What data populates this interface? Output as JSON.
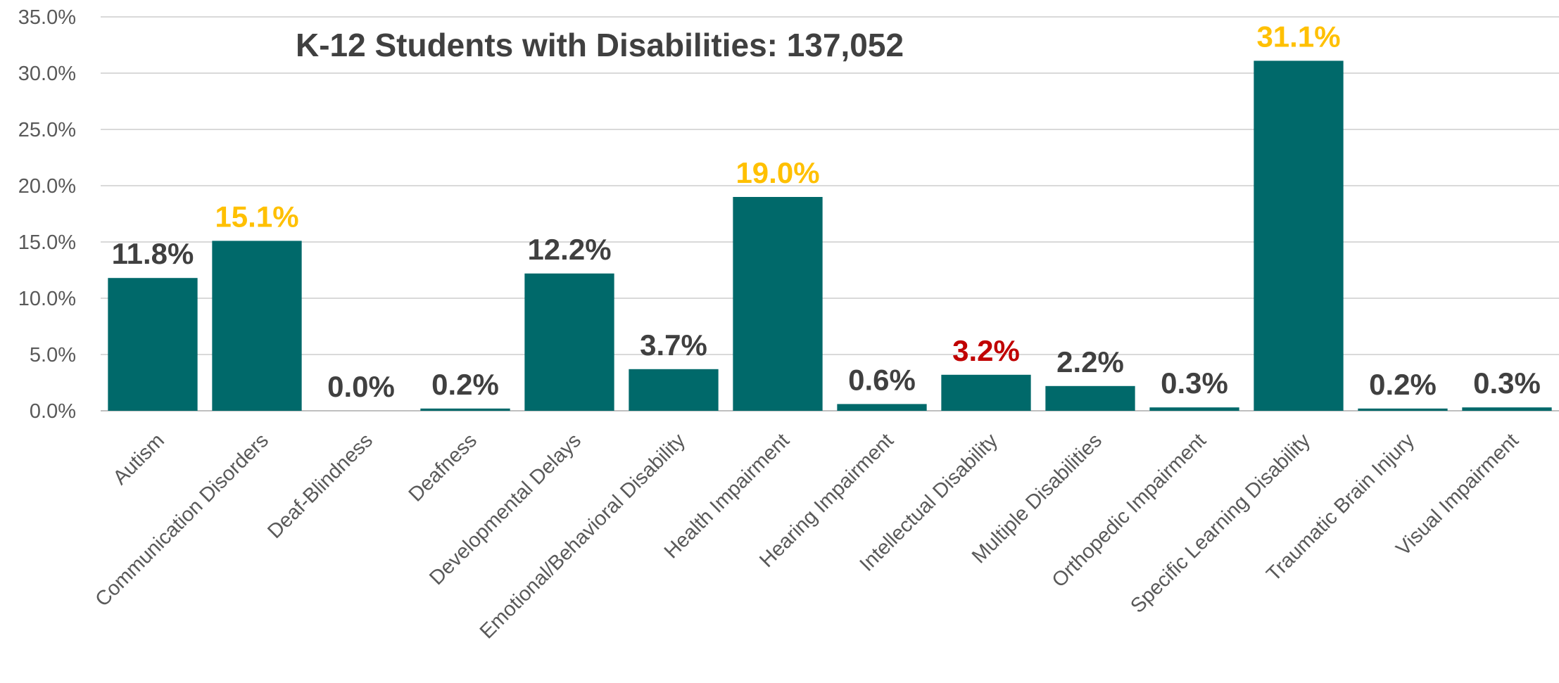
{
  "chart_data": {
    "type": "bar",
    "title": "K-12 Students with Disabilities: 137,052",
    "categories": [
      "Autism",
      "Communication Disorders",
      "Deaf-Blindness",
      "Deafness",
      "Developmental Delays",
      "Emotional/Behavioral Disability",
      "Health Impairment",
      "Hearing Impairment",
      "Intellectual Disability",
      "Multiple Disabilities",
      "Orthopedic Impairment",
      "Specific Learning Disability",
      "Traumatic Brain Injury",
      "Visual Impairment"
    ],
    "values": [
      11.8,
      15.1,
      0.0,
      0.2,
      12.2,
      3.7,
      19.0,
      0.6,
      3.2,
      2.2,
      0.3,
      31.1,
      0.2,
      0.3
    ],
    "data_labels": [
      "11.8%",
      "15.1%",
      "0.0%",
      "0.2%",
      "12.2%",
      "3.7%",
      "19.0%",
      "0.6%",
      "3.2%",
      "2.2%",
      "0.3%",
      "31.1%",
      "0.2%",
      "0.3%"
    ],
    "label_colors": [
      "#404040",
      "#FFC000",
      "#404040",
      "#404040",
      "#404040",
      "#404040",
      "#FFC000",
      "#404040",
      "#C00000",
      "#404040",
      "#404040",
      "#FFC000",
      "#404040",
      "#404040"
    ],
    "ylim": [
      0,
      35
    ],
    "y_ticks": [
      "0.0%",
      "5.0%",
      "10.0%",
      "15.0%",
      "20.0%",
      "25.0%",
      "30.0%",
      "35.0%"
    ],
    "xlabel": "",
    "ylabel": "",
    "grid": true,
    "legend": "none",
    "bar_color": "#00696A"
  }
}
